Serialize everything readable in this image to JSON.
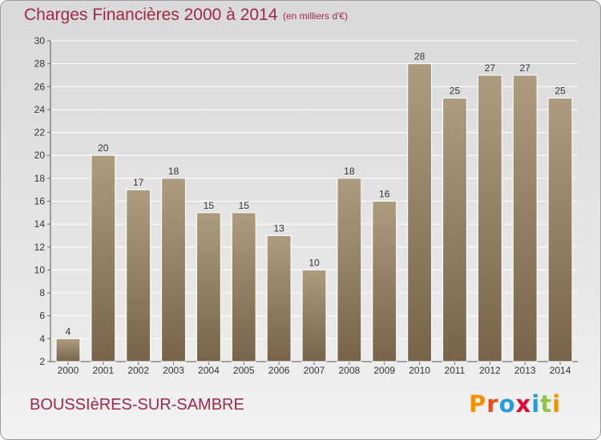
{
  "header": {
    "title": "Charges Financières 2000 à 2014",
    "unit_note": "(en milliers d'€)"
  },
  "footer": {
    "place": "BOUSSIèRES-SUR-SAMBRE",
    "logo_text": "Proxiti",
    "logo_colors": [
      "#f39200",
      "#e64d1f",
      "#2a9bd6",
      "#e40030",
      "#2a9bd6",
      "#8cc63f",
      "#f39200"
    ]
  },
  "colors": {
    "bar_light": "#ad9c7e",
    "bar_dark": "#77644a",
    "accent": "#a0284a"
  },
  "chart_data": {
    "type": "bar",
    "title": "Charges Financières 2000 à 2014",
    "subtitle": "(en milliers d'€)",
    "categories": [
      "2000",
      "2001",
      "2002",
      "2003",
      "2004",
      "2005",
      "2006",
      "2007",
      "2008",
      "2009",
      "2010",
      "2011",
      "2012",
      "2013",
      "2014"
    ],
    "values": [
      4,
      20,
      17,
      18,
      15,
      15,
      13,
      10,
      18,
      16,
      28,
      25,
      27,
      27,
      25
    ],
    "ylim": [
      2,
      30
    ],
    "yticks": [
      2,
      4,
      6,
      8,
      10,
      12,
      14,
      16,
      18,
      20,
      22,
      24,
      26,
      28,
      30
    ],
    "grid": true,
    "data_labels": true
  }
}
